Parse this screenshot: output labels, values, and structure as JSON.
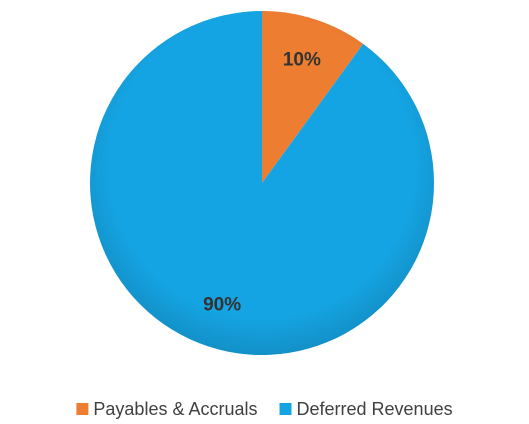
{
  "chart_data": {
    "type": "pie",
    "categories": [
      "Payables & Accruals",
      "Deferred Revenues"
    ],
    "values": [
      10,
      90
    ],
    "value_labels": [
      "10%",
      "90%"
    ],
    "colors": [
      "#ed7d31",
      "#15a4e3"
    ],
    "legend": "bottom"
  }
}
